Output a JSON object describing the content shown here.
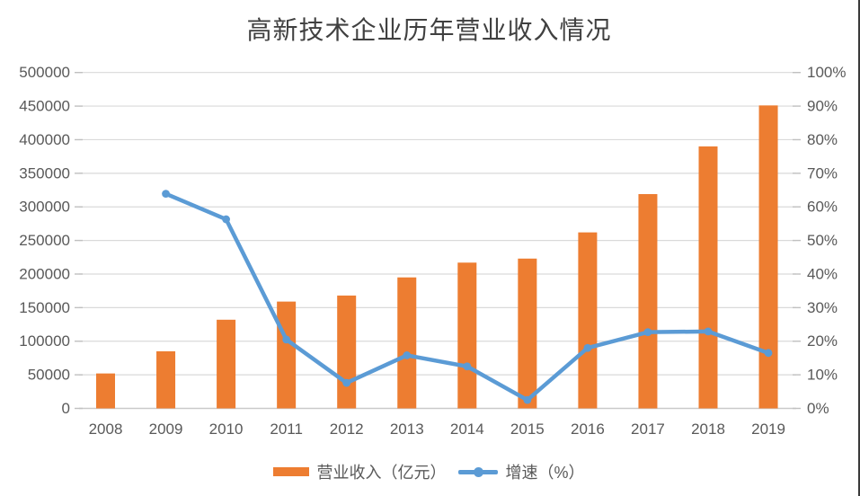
{
  "title": "高新技术企业历年营业收入情况",
  "colors": {
    "bar": "#ED7D31",
    "line": "#5B9BD5",
    "grid": "#DADADA",
    "tick": "#C0C0C0",
    "axis_line": "#C9C9C9",
    "axis_text": "#595959",
    "title_text": "#404040",
    "right_edge_border": "#3A3A3A"
  },
  "legend": {
    "bar": {
      "label": "营业收入（亿元）",
      "swatch": "orange-bar-swatch"
    },
    "line": {
      "label": "增速（%）",
      "swatch": "blue-line-marker-swatch"
    }
  },
  "chart_data": {
    "type": "bar",
    "title": "高新技术企业历年营业收入情况",
    "categories": [
      "2008",
      "2009",
      "2010",
      "2011",
      "2012",
      "2013",
      "2014",
      "2015",
      "2016",
      "2017",
      "2018",
      "2019"
    ],
    "series": [
      {
        "name": "营业收入（亿元）",
        "type": "bar",
        "axis": "left",
        "color": "#ED7D31",
        "values": [
          52000,
          85000,
          132000,
          159000,
          168000,
          195000,
          217000,
          223000,
          262000,
          319000,
          390000,
          451000
        ]
      },
      {
        "name": "增速（%）",
        "type": "line",
        "axis": "right",
        "color": "#5B9BD5",
        "values": [
          null,
          63.9,
          56.3,
          20.5,
          7.6,
          15.8,
          12.5,
          2.5,
          18.0,
          22.7,
          22.9,
          16.5
        ]
      }
    ],
    "left_axis": {
      "min": 0,
      "max": 500000,
      "step": 50000,
      "tick_labels": [
        "0",
        "50000",
        "100000",
        "150000",
        "200000",
        "250000",
        "300000",
        "350000",
        "400000",
        "450000",
        "500000"
      ]
    },
    "right_axis": {
      "min": 0,
      "max": 100,
      "step": 10,
      "tick_labels": [
        "0%",
        "10%",
        "20%",
        "30%",
        "40%",
        "50%",
        "60%",
        "70%",
        "80%",
        "90%",
        "100%"
      ]
    },
    "grid": true,
    "legend_position": "bottom"
  }
}
